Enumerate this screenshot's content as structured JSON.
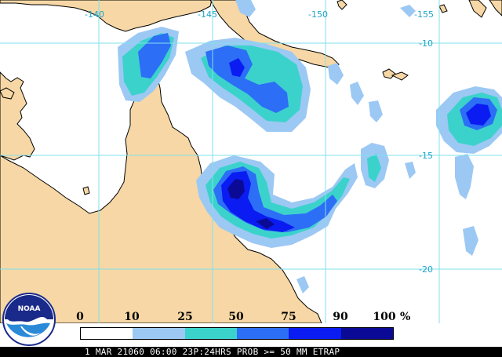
{
  "map": {
    "colors": {
      "ocean": "#ffffff",
      "land": "#f6d7a5",
      "coast": "#000000",
      "grid": "#7fe0ee",
      "grid_label": "#1fa3c8"
    },
    "lon_labels": [
      "-140",
      "-145",
      "-150",
      "-155"
    ],
    "lat_labels": [
      "-10",
      "-15",
      "-20"
    ]
  },
  "legend": {
    "ticks": [
      "0",
      "10",
      "25",
      "50",
      "75",
      "90",
      "100"
    ],
    "unit": "%",
    "bands": [
      {
        "range": "0-10",
        "color": "#ffffff"
      },
      {
        "range": "10-25",
        "color": "#9cc8f4"
      },
      {
        "range": "25-50",
        "color": "#3cd2cc"
      },
      {
        "range": "50-75",
        "color": "#2c6ef6"
      },
      {
        "range": "75-90",
        "color": "#0a1cf2"
      },
      {
        "range": "90-100",
        "color": "#0a0a96"
      }
    ]
  },
  "caption": "1 MAR 21060 06:00 23P:24HRS PROB >= 50 MM ETRAP",
  "logo": {
    "text": "NOAA",
    "icon": "noaa-logo-icon"
  }
}
